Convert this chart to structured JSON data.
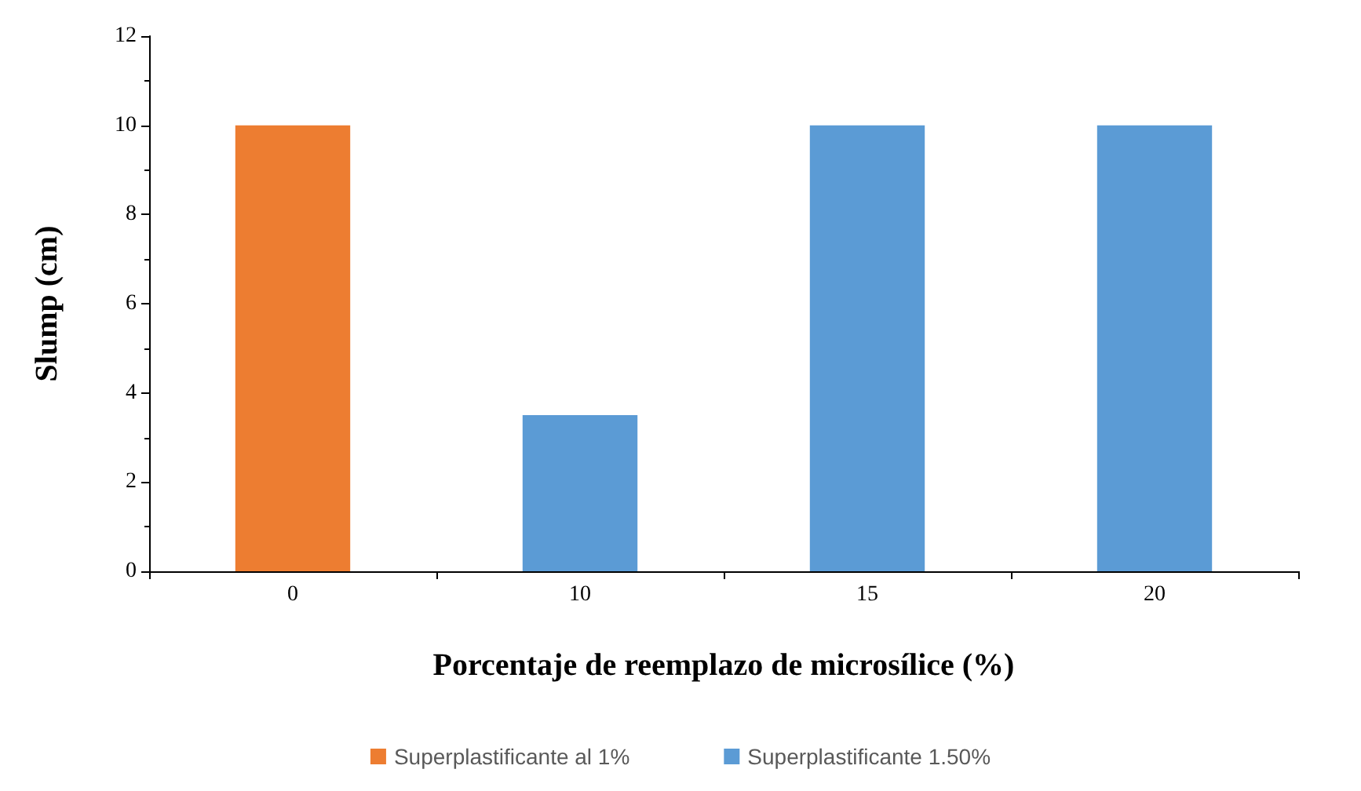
{
  "chart_data": {
    "type": "bar",
    "xlabel": "Porcentaje de reemplazo de microsílice (%)",
    "ylabel": "Slump (cm)",
    "categories": [
      "0",
      "10",
      "15",
      "20"
    ],
    "series": [
      {
        "name": "Superplastificante al 1%",
        "color": "#ed7d31",
        "values": [
          10,
          null,
          null,
          null
        ]
      },
      {
        "name": "Superplastificante 1.50%",
        "color": "#5b9bd5",
        "values": [
          null,
          3.5,
          10,
          10
        ]
      }
    ],
    "ylim": [
      0,
      12
    ],
    "yticks": [
      0,
      2,
      4,
      6,
      8,
      10,
      12
    ],
    "grid": false,
    "legend": "bottom"
  }
}
